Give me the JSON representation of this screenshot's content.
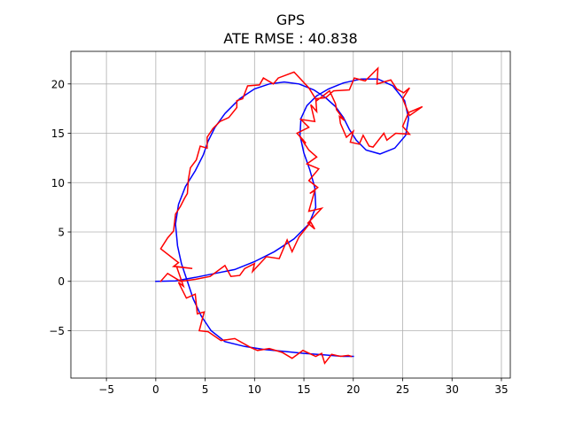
{
  "chart_data": {
    "type": "line",
    "title": "GPS",
    "subtitle": "ATE RMSE : 40.838",
    "xlabel": "",
    "ylabel": "",
    "xlim": [
      -8.6,
      35.9
    ],
    "ylim": [
      -9.8,
      23.3
    ],
    "x_ticks": [
      -5,
      0,
      5,
      10,
      15,
      20,
      25,
      30,
      35
    ],
    "y_ticks": [
      -5,
      0,
      5,
      10,
      15,
      20
    ],
    "x_tick_labels": [
      "−5",
      "0",
      "5",
      "10",
      "15",
      "20",
      "25",
      "30",
      "35"
    ],
    "y_tick_labels": [
      "−5",
      "0",
      "5",
      "10",
      "15",
      "20"
    ],
    "grid": true,
    "colors": {
      "ground_truth": "#0000ff",
      "gps": "#ff0000",
      "grid": "#b0b0b0",
      "axes": "#000000"
    },
    "series": [
      {
        "color": "#0000ff",
        "points": [
          [
            0.0,
            0.0
          ],
          [
            2.0,
            0.05
          ],
          [
            4.0,
            0.4
          ],
          [
            6.0,
            0.8
          ],
          [
            8.0,
            1.2
          ],
          [
            10.0,
            2.0
          ],
          [
            12.0,
            3.0
          ],
          [
            14.0,
            4.3
          ],
          [
            15.5,
            5.8
          ],
          [
            16.2,
            7.5
          ],
          [
            16.1,
            9.5
          ],
          [
            15.6,
            11.3
          ],
          [
            15.0,
            13.0
          ],
          [
            14.6,
            14.8
          ],
          [
            14.7,
            16.5
          ],
          [
            15.3,
            17.8
          ],
          [
            16.3,
            18.8
          ],
          [
            17.5,
            19.5
          ],
          [
            19.0,
            20.1
          ],
          [
            20.8,
            20.5
          ],
          [
            22.5,
            20.5
          ],
          [
            24.0,
            19.8
          ],
          [
            25.2,
            18.3
          ],
          [
            25.6,
            16.5
          ],
          [
            25.3,
            14.8
          ],
          [
            24.2,
            13.5
          ],
          [
            22.7,
            12.9
          ],
          [
            21.3,
            13.3
          ],
          [
            20.3,
            14.3
          ],
          [
            19.6,
            15.4
          ],
          [
            19.0,
            16.6
          ],
          [
            18.2,
            17.7
          ],
          [
            17.2,
            18.6
          ],
          [
            16.0,
            19.4
          ],
          [
            14.5,
            20.0
          ],
          [
            13.0,
            20.2
          ],
          [
            11.5,
            20.0
          ],
          [
            10.0,
            19.5
          ],
          [
            8.5,
            18.5
          ],
          [
            7.0,
            17.0
          ],
          [
            6.0,
            15.6
          ],
          [
            5.3,
            14.2
          ],
          [
            4.8,
            12.8
          ],
          [
            4.0,
            11.2
          ],
          [
            3.0,
            9.6
          ],
          [
            2.3,
            7.8
          ],
          [
            2.0,
            5.8
          ],
          [
            2.2,
            3.6
          ],
          [
            2.6,
            1.8
          ],
          [
            3.2,
            0.0
          ],
          [
            3.8,
            -1.8
          ],
          [
            4.6,
            -3.5
          ],
          [
            5.6,
            -5.0
          ],
          [
            7.0,
            -6.1
          ],
          [
            9.0,
            -6.6
          ],
          [
            11.0,
            -6.9
          ],
          [
            13.0,
            -7.1
          ],
          [
            15.0,
            -7.3
          ],
          [
            17.0,
            -7.45
          ],
          [
            19.0,
            -7.6
          ],
          [
            20.0,
            -7.6
          ]
        ]
      },
      {
        "color": "#ff0000",
        "points": [
          [
            0.5,
            0.0
          ],
          [
            1.2,
            0.8
          ],
          [
            2.5,
            0.0
          ],
          [
            4.0,
            0.2
          ],
          [
            5.5,
            0.5
          ],
          [
            7.0,
            1.6
          ],
          [
            7.6,
            0.5
          ],
          [
            8.5,
            0.6
          ],
          [
            9.0,
            1.3
          ],
          [
            10.0,
            1.8
          ],
          [
            9.8,
            1.0
          ],
          [
            11.2,
            2.5
          ],
          [
            12.5,
            2.3
          ],
          [
            13.3,
            4.2
          ],
          [
            13.8,
            3.0
          ],
          [
            14.5,
            4.5
          ],
          [
            15.7,
            6.0
          ],
          [
            16.1,
            5.3
          ],
          [
            15.4,
            5.9
          ],
          [
            16.8,
            7.4
          ],
          [
            15.5,
            7.1
          ],
          [
            16.1,
            9.2
          ],
          [
            15.6,
            8.9
          ],
          [
            16.4,
            9.5
          ],
          [
            15.5,
            10.2
          ],
          [
            16.5,
            11.4
          ],
          [
            15.3,
            11.9
          ],
          [
            16.3,
            12.6
          ],
          [
            15.5,
            13.3
          ],
          [
            14.5,
            14.8
          ],
          [
            15.2,
            14.0
          ],
          [
            14.3,
            15.0
          ],
          [
            15.5,
            15.6
          ],
          [
            14.7,
            16.4
          ],
          [
            16.1,
            16.2
          ],
          [
            15.7,
            17.9
          ],
          [
            16.3,
            17.2
          ],
          [
            16.2,
            18.5
          ],
          [
            17.2,
            18.6
          ],
          [
            18.0,
            19.3
          ],
          [
            19.6,
            19.4
          ],
          [
            20.1,
            20.6
          ],
          [
            21.2,
            20.3
          ],
          [
            22.5,
            21.6
          ],
          [
            22.4,
            20.0
          ],
          [
            23.8,
            20.4
          ],
          [
            24.4,
            19.5
          ],
          [
            25.1,
            19.1
          ],
          [
            25.7,
            19.6
          ],
          [
            25.0,
            18.5
          ],
          [
            25.7,
            16.8
          ],
          [
            27.0,
            17.7
          ],
          [
            25.6,
            17.1
          ],
          [
            25.0,
            15.7
          ],
          [
            25.7,
            14.9
          ],
          [
            24.3,
            15.0
          ],
          [
            23.4,
            14.3
          ],
          [
            23.1,
            15.0
          ],
          [
            22.0,
            13.6
          ],
          [
            21.6,
            13.7
          ],
          [
            21.0,
            14.8
          ],
          [
            20.6,
            13.9
          ],
          [
            19.7,
            14.1
          ],
          [
            20.0,
            15.2
          ],
          [
            19.3,
            14.6
          ],
          [
            18.7,
            16.0
          ],
          [
            18.6,
            16.7
          ],
          [
            19.1,
            16.3
          ],
          [
            18.3,
            17.4
          ],
          [
            18.2,
            18.0
          ],
          [
            17.6,
            19.3
          ],
          [
            16.3,
            18.3
          ],
          [
            15.5,
            19.6
          ],
          [
            14.0,
            21.2
          ],
          [
            12.4,
            20.6
          ],
          [
            11.9,
            20.0
          ],
          [
            10.9,
            20.6
          ],
          [
            10.5,
            19.9
          ],
          [
            9.3,
            19.8
          ],
          [
            8.8,
            18.5
          ],
          [
            8.2,
            18.3
          ],
          [
            8.2,
            17.6
          ],
          [
            7.4,
            16.6
          ],
          [
            6.5,
            16.2
          ],
          [
            5.8,
            15.5
          ],
          [
            5.2,
            14.6
          ],
          [
            5.2,
            13.5
          ],
          [
            4.5,
            13.7
          ],
          [
            4.1,
            12.3
          ],
          [
            3.5,
            11.5
          ],
          [
            3.3,
            10.3
          ],
          [
            3.2,
            8.9
          ],
          [
            2.9,
            8.4
          ],
          [
            2.5,
            7.6
          ],
          [
            2.0,
            6.8
          ],
          [
            1.8,
            5.1
          ],
          [
            1.2,
            4.4
          ],
          [
            0.5,
            3.3
          ],
          [
            2.3,
            1.9
          ],
          [
            1.8,
            1.5
          ],
          [
            3.7,
            1.3
          ],
          [
            2.1,
            1.5
          ],
          [
            2.8,
            -0.5
          ],
          [
            2.3,
            -0.1
          ],
          [
            3.1,
            -1.7
          ],
          [
            4.0,
            -1.3
          ],
          [
            4.2,
            -3.3
          ],
          [
            4.9,
            -3.1
          ],
          [
            4.4,
            -5.0
          ],
          [
            5.3,
            -5.1
          ],
          [
            6.6,
            -6.0
          ],
          [
            8.0,
            -5.8
          ],
          [
            9.6,
            -6.7
          ],
          [
            10.3,
            -7.0
          ],
          [
            11.5,
            -6.8
          ],
          [
            12.8,
            -7.2
          ],
          [
            13.8,
            -7.8
          ],
          [
            14.9,
            -7.0
          ],
          [
            16.2,
            -7.6
          ],
          [
            16.8,
            -7.3
          ],
          [
            17.1,
            -8.3
          ],
          [
            17.8,
            -7.4
          ],
          [
            18.7,
            -7.6
          ],
          [
            19.5,
            -7.5
          ],
          [
            19.8,
            -7.6
          ]
        ]
      }
    ]
  }
}
